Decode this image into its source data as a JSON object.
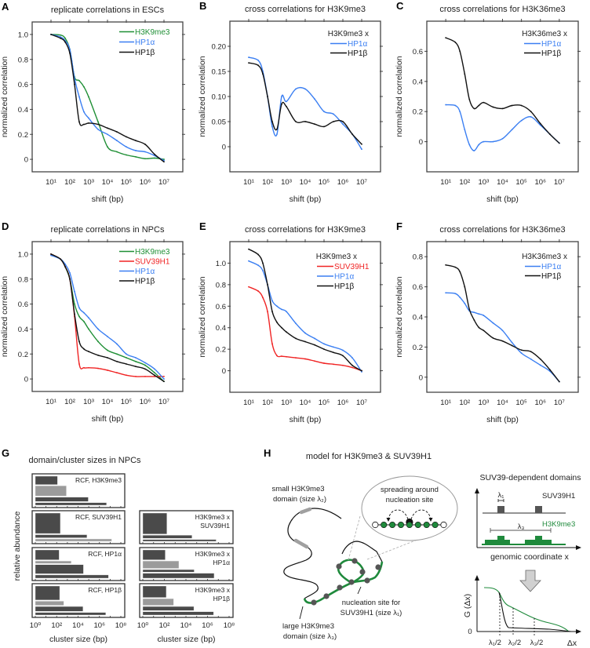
{
  "chart_data": [
    {
      "panel": "A",
      "type": "line",
      "title": "replicate correlations in ESCs",
      "xlabel": "shift (bp)",
      "ylabel": "normalized correlation",
      "xscale": "log",
      "xlim": [
        1,
        100000000
      ],
      "ylim": [
        -0.1,
        1.1
      ],
      "xticks": [
        10,
        100,
        1000,
        10000,
        100000,
        1000000,
        10000000
      ],
      "xtick_labels": [
        "10¹",
        "10²",
        "10³",
        "10⁴",
        "10⁵",
        "10⁶",
        "10⁷"
      ],
      "yticks": [
        0,
        0.2,
        0.4,
        0.6,
        0.8,
        1.0
      ],
      "ytick_labels": [
        "0",
        "0.2",
        "0.4",
        "0.6",
        "0.8",
        "1.0"
      ],
      "legend_position": "top-right",
      "x": [
        10,
        32,
        56,
        100,
        178,
        316,
        562,
        1000,
        3162,
        10000,
        31623,
        100000,
        316228,
        1000000,
        3162278,
        10000000
      ],
      "series": [
        {
          "name": "H3K9me3",
          "color": "#1f8f35",
          "values": [
            1.0,
            0.995,
            0.97,
            0.88,
            0.66,
            0.63,
            0.58,
            0.5,
            0.3,
            0.1,
            0.06,
            0.035,
            0.02,
            0.005,
            0.01,
            0
          ]
        },
        {
          "name": "HP1α",
          "color": "#3b7ff2",
          "values": [
            1.0,
            0.98,
            0.95,
            0.88,
            0.65,
            0.5,
            0.38,
            0.33,
            0.24,
            0.2,
            0.15,
            0.1,
            0.07,
            0.06,
            0.03,
            -0.01
          ]
        },
        {
          "name": "HP1β",
          "color": "#111111",
          "values": [
            1.0,
            0.97,
            0.94,
            0.85,
            0.6,
            0.3,
            0.28,
            0.29,
            0.28,
            0.25,
            0.22,
            0.18,
            0.15,
            0.12,
            0.04,
            -0.02
          ]
        }
      ]
    },
    {
      "panel": "B",
      "type": "line",
      "title": "cross correlations for H3K9me3",
      "xlabel": "shift (bp)",
      "ylabel": "normalized correlation",
      "xscale": "log",
      "xlim": [
        1,
        100000000
      ],
      "ylim": [
        -0.05,
        0.25
      ],
      "xticks": [
        10,
        100,
        1000,
        10000,
        100000,
        1000000,
        10000000
      ],
      "xtick_labels": [
        "10¹",
        "10²",
        "10³",
        "10⁴",
        "10⁵",
        "10⁶",
        "10⁷"
      ],
      "yticks": [
        0,
        0.05,
        0.1,
        0.15,
        0.2
      ],
      "ytick_labels": [
        "0",
        "0.05",
        "0.10",
        "0.15",
        "0.20"
      ],
      "legend_title": "H3K9me3 x",
      "legend_position": "top-right",
      "x": [
        10,
        32,
        56,
        100,
        178,
        316,
        562,
        1000,
        3162,
        10000,
        31623,
        100000,
        316228,
        1000000,
        3162278,
        10000000
      ],
      "series": [
        {
          "name": "HP1α",
          "color": "#3b7ff2",
          "values": [
            0.178,
            0.172,
            0.15,
            0.1,
            0.04,
            0.025,
            0.1,
            0.09,
            0.115,
            0.115,
            0.095,
            0.07,
            0.065,
            0.045,
            0.025,
            -0.005
          ]
        },
        {
          "name": "HP1β",
          "color": "#111111",
          "values": [
            0.167,
            0.162,
            0.145,
            0.1,
            0.05,
            0.035,
            0.085,
            0.08,
            0.05,
            0.05,
            0.045,
            0.04,
            0.05,
            0.05,
            0.025,
            0.005
          ]
        }
      ]
    },
    {
      "panel": "C",
      "type": "line",
      "title": "cross correlations for H3K36me3",
      "xlabel": "shift (bp)",
      "ylabel": "normalized correlation",
      "xscale": "log",
      "xlim": [
        1,
        100000000
      ],
      "ylim": [
        -0.2,
        0.8
      ],
      "xticks": [
        10,
        100,
        1000,
        10000,
        100000,
        1000000,
        10000000
      ],
      "xtick_labels": [
        "10¹",
        "10²",
        "10³",
        "10⁴",
        "10⁵",
        "10⁶",
        "10⁷"
      ],
      "yticks": [
        0,
        0.2,
        0.4,
        0.6
      ],
      "ytick_labels": [
        "0",
        "0.2",
        "0.4",
        "0.6"
      ],
      "legend_title": "H3K36me3 x",
      "legend_position": "top-right",
      "x": [
        10,
        32,
        56,
        100,
        178,
        316,
        562,
        1000,
        3162,
        10000,
        31623,
        100000,
        316228,
        1000000,
        3162278,
        10000000
      ],
      "series": [
        {
          "name": "HP1α",
          "color": "#3b7ff2",
          "values": [
            0.245,
            0.24,
            0.2,
            0.08,
            -0.02,
            -0.06,
            -0.02,
            0.0,
            0.0,
            0.02,
            0.08,
            0.14,
            0.165,
            0.11,
            0.05,
            -0.01
          ]
        },
        {
          "name": "HP1β",
          "color": "#111111",
          "values": [
            0.69,
            0.66,
            0.6,
            0.45,
            0.28,
            0.22,
            0.24,
            0.26,
            0.23,
            0.22,
            0.24,
            0.24,
            0.2,
            0.12,
            0.05,
            -0.01
          ]
        }
      ]
    },
    {
      "panel": "D",
      "type": "line",
      "title": "replicate correlations in NPCs",
      "xlabel": "shift (bp)",
      "ylabel": "normalized correlation",
      "xscale": "log",
      "xlim": [
        1,
        100000000
      ],
      "ylim": [
        -0.1,
        1.1
      ],
      "xticks": [
        10,
        100,
        1000,
        10000,
        100000,
        1000000,
        10000000
      ],
      "xtick_labels": [
        "10¹",
        "10²",
        "10³",
        "10⁴",
        "10⁵",
        "10⁶",
        "10⁷"
      ],
      "yticks": [
        0,
        0.2,
        0.4,
        0.6,
        0.8,
        1.0
      ],
      "ytick_labels": [
        "0",
        "0.2",
        "0.4",
        "0.6",
        "0.8",
        "1.0"
      ],
      "legend_position": "top-right",
      "x": [
        10,
        32,
        56,
        100,
        178,
        316,
        562,
        1000,
        3162,
        10000,
        31623,
        100000,
        316228,
        1000000,
        3162278,
        10000000
      ],
      "series": [
        {
          "name": "H3K9me3",
          "color": "#1f8f35",
          "values": [
            1.0,
            0.96,
            0.9,
            0.8,
            0.6,
            0.5,
            0.46,
            0.4,
            0.3,
            0.23,
            0.2,
            0.17,
            0.14,
            0.11,
            0.05,
            -0.02
          ]
        },
        {
          "name": "SUV39H1",
          "color": "#f02424",
          "values": [
            1.0,
            0.96,
            0.9,
            0.8,
            0.5,
            0.12,
            0.09,
            0.09,
            0.085,
            0.07,
            0.05,
            0.03,
            0.02,
            0.02,
            0.02,
            0.02
          ]
        },
        {
          "name": "HP1α",
          "color": "#3b7ff2",
          "values": [
            0.99,
            0.96,
            0.92,
            0.85,
            0.7,
            0.57,
            0.53,
            0.49,
            0.4,
            0.34,
            0.28,
            0.2,
            0.17,
            0.13,
            0.08,
            0.0
          ]
        },
        {
          "name": "HP1β",
          "color": "#111111",
          "values": [
            1.0,
            0.96,
            0.9,
            0.8,
            0.52,
            0.3,
            0.24,
            0.22,
            0.19,
            0.17,
            0.14,
            0.12,
            0.1,
            0.08,
            0.03,
            -0.02
          ]
        }
      ]
    },
    {
      "panel": "E",
      "type": "line",
      "title": "cross correlations for H3K9me3",
      "xlabel": "shift (bp)",
      "ylabel": "normalized correlation",
      "xscale": "log",
      "xlim": [
        1,
        100000000
      ],
      "ylim": [
        -0.2,
        1.2
      ],
      "xticks": [
        10,
        100,
        1000,
        10000,
        100000,
        1000000,
        10000000
      ],
      "xtick_labels": [
        "10¹",
        "10²",
        "10³",
        "10⁴",
        "10⁵",
        "10⁶",
        "10⁷"
      ],
      "yticks": [
        0,
        0.2,
        0.4,
        0.6,
        0.8,
        1.0
      ],
      "ytick_labels": [
        "0",
        "0.2",
        "0.4",
        "0.6",
        "0.8",
        "1.0"
      ],
      "legend_title": "H3K9me3 x",
      "legend_position": "top-right",
      "x": [
        10,
        32,
        56,
        100,
        178,
        316,
        562,
        1000,
        3162,
        10000,
        31623,
        100000,
        316228,
        1000000,
        3162278,
        10000000
      ],
      "series": [
        {
          "name": "SUV39H1",
          "color": "#f02424",
          "values": [
            0.78,
            0.74,
            0.68,
            0.55,
            0.25,
            0.14,
            0.135,
            0.13,
            0.12,
            0.11,
            0.09,
            0.07,
            0.06,
            0.05,
            0.03,
            0.0
          ]
        },
        {
          "name": "HP1α",
          "color": "#3b7ff2",
          "values": [
            1.02,
            0.98,
            0.93,
            0.8,
            0.65,
            0.6,
            0.57,
            0.55,
            0.44,
            0.35,
            0.3,
            0.25,
            0.22,
            0.19,
            0.12,
            -0.01
          ]
        },
        {
          "name": "HP1β",
          "color": "#111111",
          "values": [
            1.13,
            1.08,
            1.0,
            0.8,
            0.55,
            0.45,
            0.4,
            0.36,
            0.3,
            0.27,
            0.24,
            0.2,
            0.17,
            0.14,
            0.05,
            0.0
          ]
        }
      ]
    },
    {
      "panel": "F",
      "type": "line",
      "title": "cross correlations for H3K36me3",
      "xlabel": "shift (bp)",
      "ylabel": "normalized correlation",
      "xscale": "log",
      "xlim": [
        1,
        100000000
      ],
      "ylim": [
        -0.1,
        0.9
      ],
      "xticks": [
        10,
        100,
        1000,
        10000,
        100000,
        1000000,
        10000000
      ],
      "xtick_labels": [
        "10¹",
        "10²",
        "10³",
        "10⁴",
        "10⁵",
        "10⁶",
        "10⁷"
      ],
      "yticks": [
        0,
        0.2,
        0.4,
        0.6,
        0.8
      ],
      "ytick_labels": [
        "0",
        "0.2",
        "0.4",
        "0.6",
        "0.8"
      ],
      "legend_title": "H3K36me3 x",
      "legend_position": "top-right",
      "x": [
        10,
        32,
        56,
        100,
        178,
        316,
        562,
        1000,
        3162,
        10000,
        31623,
        100000,
        316228,
        1000000,
        3162278,
        10000000
      ],
      "series": [
        {
          "name": "HP1α",
          "color": "#3b7ff2",
          "values": [
            0.56,
            0.555,
            0.53,
            0.49,
            0.44,
            0.43,
            0.42,
            0.41,
            0.36,
            0.31,
            0.23,
            0.16,
            0.12,
            0.08,
            0.04,
            -0.03
          ]
        },
        {
          "name": "HP1β",
          "color": "#111111",
          "values": [
            0.745,
            0.73,
            0.7,
            0.6,
            0.45,
            0.38,
            0.33,
            0.31,
            0.26,
            0.24,
            0.21,
            0.18,
            0.17,
            0.12,
            0.05,
            -0.03
          ]
        }
      ]
    },
    {
      "panel": "G",
      "type": "bar",
      "title": "domain/cluster sizes in NPCs",
      "xlabel": "cluster size (bp)",
      "ylabel": "relative abundance",
      "xscale": "log",
      "xlim": [
        1,
        100000000
      ],
      "xticks": [
        1,
        100,
        10000,
        1000000,
        100000000
      ],
      "xtick_labels": [
        "10⁰",
        "10²",
        "10⁴",
        "10⁶",
        "10⁸"
      ],
      "colors": {
        "dark": "#4a4a4a",
        "light": "#9b9b9b"
      },
      "subplots": [
        {
          "label": [
            "RCF, H3K9me3"
          ],
          "bars": [
            {
              "size_bp": 120,
              "abundance": 0.33,
              "shade": "dark"
            },
            {
              "size_bp": 800,
              "abundance": 0.4,
              "shade": "light"
            },
            {
              "size_bp": 90000,
              "abundance": 0.17,
              "shade": "dark"
            },
            {
              "size_bp": 4600000,
              "abundance": 0.1,
              "shade": "dark"
            }
          ]
        },
        {
          "label": [
            "RCF, SUV39H1"
          ],
          "bars": [
            {
              "size_bp": 220,
              "abundance": 0.79,
              "shade": "dark"
            },
            {
              "size_bp": 68000,
              "abundance": 0.12,
              "shade": "dark"
            },
            {
              "size_bp": 14000000,
              "abundance": 0.09,
              "shade": "light"
            }
          ]
        },
        {
          "label": [
            "RCF, HP1α"
          ],
          "bars": [
            {
              "size_bp": 170,
              "abundance": 0.4,
              "shade": "dark"
            },
            {
              "size_bp": 2300,
              "abundance": 0.1,
              "shade": "light"
            },
            {
              "size_bp": 32000,
              "abundance": 0.37,
              "shade": "dark"
            },
            {
              "size_bp": 7000000,
              "abundance": 0.13,
              "shade": "dark"
            }
          ]
        },
        {
          "label": [
            "RCF, HP1β"
          ],
          "bars": [
            {
              "size_bp": 190,
              "abundance": 0.55,
              "shade": "dark"
            },
            {
              "size_bp": 460,
              "abundance": 0.16,
              "shade": "light"
            },
            {
              "size_bp": 29000,
              "abundance": 0.19,
              "shade": "dark"
            },
            {
              "size_bp": 3900000,
              "abundance": 0.1,
              "shade": "dark"
            }
          ]
        },
        {
          "label": [
            "H3K9me3 x",
            "SUV39H1"
          ],
          "bars": [
            {
              "size_bp": 170,
              "abundance": 0.81,
              "shade": "dark"
            },
            {
              "size_bp": 36000,
              "abundance": 0.12,
              "shade": "dark"
            },
            {
              "size_bp": 6300000,
              "abundance": 0.07,
              "shade": "dark"
            }
          ]
        },
        {
          "label": [
            "H3K9me3 x",
            "HP1α"
          ],
          "bars": [
            {
              "size_bp": 120,
              "abundance": 0.4,
              "shade": "dark"
            },
            {
              "size_bp": 2200,
              "abundance": 0.3,
              "shade": "light"
            },
            {
              "size_bp": 58000,
              "abundance": 0.1,
              "shade": "dark"
            },
            {
              "size_bp": 4100000,
              "abundance": 0.2,
              "shade": "dark"
            }
          ]
        },
        {
          "label": [
            "H3K9me3 x",
            "HP1β"
          ],
          "bars": [
            {
              "size_bp": 150,
              "abundance": 0.45,
              "shade": "dark"
            },
            {
              "size_bp": 710,
              "abundance": 0.26,
              "shade": "light"
            },
            {
              "size_bp": 54000,
              "abundance": 0.16,
              "shade": "dark"
            },
            {
              "size_bp": 3600000,
              "abundance": 0.13,
              "shade": "dark"
            }
          ]
        }
      ]
    }
  ],
  "panel_h": {
    "letter": "H",
    "title": "model for H3K9me3 & SUV39H1",
    "small_domain": [
      "small H3K9me3",
      "domain (size λ₂)"
    ],
    "bubble": [
      "spreading around",
      "nucleation site"
    ],
    "nucleation": [
      "nucleation site for",
      "SUV39H1 (size λ₁)"
    ],
    "large_domain": [
      "large H3K9me3",
      "domain (size λ₃)"
    ],
    "right_title": "SUV39-dependent domains",
    "suv_label": "SUV39H1",
    "h3_label": "H3K9me3",
    "lambda1": "λ₁",
    "lambda3": "λ₃",
    "x_axis": "genomic coordinate x",
    "g_axis": "G (Δx)",
    "zero": "0",
    "ticks": [
      "λ₁/2",
      "λ₂/2",
      "λ₃/2"
    ],
    "dx": "Δx",
    "colors": {
      "green": "#1f8a3c",
      "gray": "#555555",
      "domain_gray": "#a0a0a0"
    }
  }
}
